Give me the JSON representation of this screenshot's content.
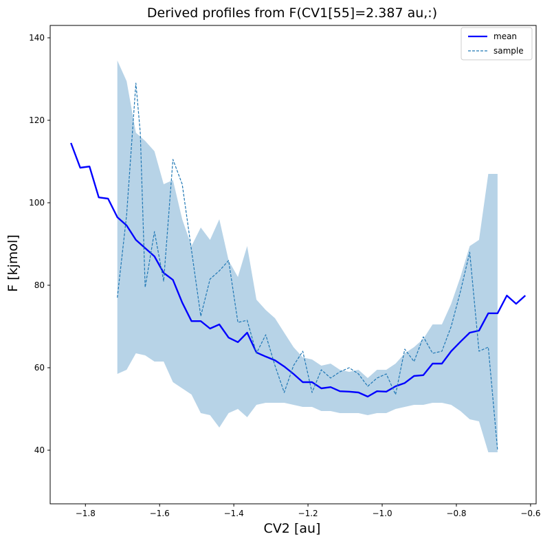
{
  "chart_data": {
    "type": "line",
    "title": "Derived profiles from F(CV1[55]=2.387 au,:)",
    "xlabel": "CV2 [au]",
    "ylabel": "F [kjmol]",
    "xlim": [
      -1.895,
      -0.585
    ],
    "ylim": [
      27,
      143
    ],
    "xticks": [
      -1.8,
      -1.6,
      -1.4,
      -1.2,
      -1.0,
      -0.8,
      -0.6
    ],
    "xtick_labels": [
      "−1.8",
      "−1.6",
      "−1.4",
      "−1.2",
      "−1.0",
      "−0.8",
      "−0.6"
    ],
    "yticks": [
      40,
      60,
      80,
      100,
      120,
      140
    ],
    "ytick_labels": [
      "40",
      "60",
      "80",
      "100",
      "120",
      "140"
    ],
    "legend": {
      "position": "upper right",
      "entries": [
        "mean",
        "sample"
      ]
    },
    "colors": {
      "mean": "#0000ff",
      "sample": "#1f77b4",
      "band": "#1f77b4"
    },
    "band": {
      "x": [
        -1.714,
        -1.689,
        -1.664,
        -1.639,
        -1.614,
        -1.589,
        -1.564,
        -1.539,
        -1.514,
        -1.489,
        -1.464,
        -1.439,
        -1.414,
        -1.389,
        -1.364,
        -1.339,
        -1.314,
        -1.289,
        -1.264,
        -1.239,
        -1.214,
        -1.189,
        -1.164,
        -1.139,
        -1.114,
        -1.089,
        -1.064,
        -1.039,
        -1.014,
        -0.989,
        -0.964,
        -0.939,
        -0.914,
        -0.889,
        -0.864,
        -0.839,
        -0.814,
        -0.789,
        -0.764,
        -0.739,
        -0.714,
        -0.689
      ],
      "upper": [
        134.5,
        129.5,
        117,
        115,
        112.5,
        104.5,
        105.5,
        96,
        89.5,
        94,
        91,
        96,
        86,
        82,
        89.5,
        76.5,
        74,
        72,
        68.5,
        65,
        62.5,
        62,
        60.5,
        61,
        59.5,
        59,
        59.5,
        57.5,
        59.5,
        59.5,
        61,
        63.5,
        65,
        67,
        70.5,
        70.5,
        75.5,
        82,
        89.5,
        91,
        107,
        107
      ],
      "lower": [
        58.5,
        59.5,
        63.5,
        63,
        61.5,
        61.5,
        56.5,
        55,
        53.5,
        49,
        48.5,
        45.5,
        49,
        50,
        48,
        51,
        51.5,
        51.5,
        51.5,
        51,
        50.5,
        50.5,
        49.5,
        49.5,
        49,
        49,
        49,
        48.5,
        49,
        49,
        50,
        50.5,
        51,
        51,
        51.5,
        51.5,
        51,
        49.5,
        47.5,
        47,
        39.5,
        39.5
      ]
    },
    "series": [
      {
        "name": "mean",
        "x": [
          -1.839,
          -1.814,
          -1.789,
          -1.764,
          -1.739,
          -1.714,
          -1.689,
          -1.664,
          -1.639,
          -1.614,
          -1.589,
          -1.564,
          -1.539,
          -1.514,
          -1.489,
          -1.464,
          -1.439,
          -1.414,
          -1.389,
          -1.364,
          -1.339,
          -1.314,
          -1.289,
          -1.264,
          -1.239,
          -1.214,
          -1.189,
          -1.164,
          -1.139,
          -1.114,
          -1.089,
          -1.064,
          -1.039,
          -1.014,
          -0.989,
          -0.964,
          -0.939,
          -0.914,
          -0.889,
          -0.864,
          -0.839,
          -0.814,
          -0.789,
          -0.764,
          -0.739,
          -0.714,
          -0.689,
          -0.664,
          -0.639,
          -0.614
        ],
        "values": [
          114.5,
          108.5,
          108.8,
          101.3,
          101,
          96.5,
          94.5,
          91,
          89,
          87,
          83,
          81.3,
          75.8,
          71.3,
          71.3,
          69.5,
          70.5,
          67.3,
          66.2,
          68.5,
          63.7,
          62.7,
          61.8,
          60.3,
          58.5,
          56.5,
          56.5,
          55,
          55.3,
          54.3,
          54.2,
          54,
          53,
          54.3,
          54.2,
          55.5,
          56.3,
          58,
          58.2,
          61,
          61,
          64,
          66.3,
          68.5,
          69,
          73.2,
          73.2,
          77.5,
          75.5,
          77.5
        ]
      },
      {
        "name": "sample",
        "x": [
          -1.714,
          -1.689,
          -1.664,
          -1.652,
          -1.639,
          -1.614,
          -1.589,
          -1.564,
          -1.539,
          -1.514,
          -1.489,
          -1.464,
          -1.439,
          -1.414,
          -1.389,
          -1.364,
          -1.339,
          -1.314,
          -1.289,
          -1.264,
          -1.239,
          -1.214,
          -1.189,
          -1.164,
          -1.139,
          -1.114,
          -1.089,
          -1.064,
          -1.039,
          -1.014,
          -0.989,
          -0.964,
          -0.939,
          -0.914,
          -0.889,
          -0.864,
          -0.839,
          -0.814,
          -0.789,
          -0.764,
          -0.739,
          -0.714,
          -0.689
        ],
        "values": [
          77,
          97,
          129,
          117,
          79.5,
          93,
          81,
          110.5,
          104.5,
          88.5,
          72.5,
          81.5,
          83.5,
          86,
          71,
          71.5,
          63.5,
          68,
          60.5,
          54,
          60.5,
          64,
          54,
          59.5,
          57.5,
          59,
          60,
          58.5,
          55.5,
          57.5,
          58.5,
          53.5,
          64.5,
          61.5,
          67.5,
          63.5,
          64,
          70,
          78.5,
          88,
          64,
          65,
          40
        ]
      }
    ]
  }
}
